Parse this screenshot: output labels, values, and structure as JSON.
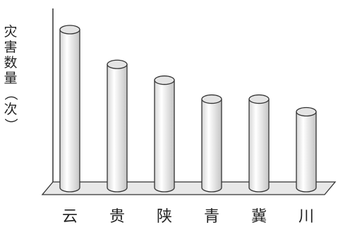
{
  "chart_data": {
    "type": "bar",
    "style": "3d-cylinder",
    "categories": [
      "云",
      "贵",
      "陕",
      "青",
      "冀",
      "川"
    ],
    "values": [
      100,
      78,
      68,
      56,
      56,
      48
    ],
    "ylabel": "灾害数量（次）",
    "ylabel_chars": [
      "灾",
      "害",
      "数",
      "量",
      "（",
      "次",
      "）"
    ],
    "xlabel": "",
    "title": "",
    "ylim": [
      0,
      100
    ],
    "grid": false,
    "legend": "none",
    "colors": {
      "bar_fill": "#f4f4f4",
      "bar_stroke": "#333333",
      "floor_fill": "#e8e8e8"
    }
  }
}
